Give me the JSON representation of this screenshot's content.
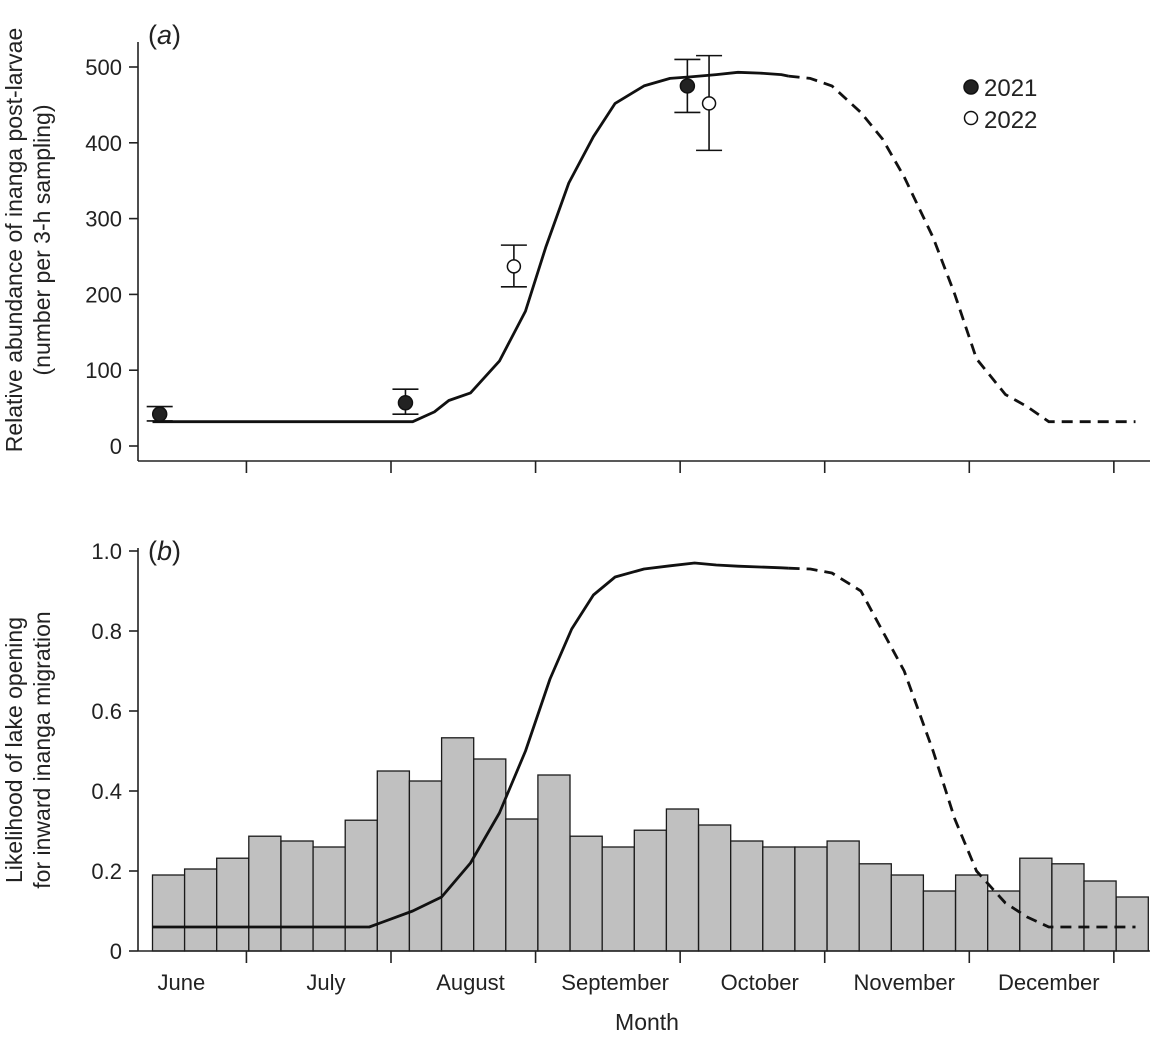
{
  "chart_data": [
    {
      "panel": "a",
      "panel_label": "a",
      "type": "line",
      "xlabel": "",
      "ylabel_lines": [
        "Relative abundance of inanga post-larvae",
        "(number per 3-h sampling)"
      ],
      "ylim": [
        0,
        530
      ],
      "yticks": [
        0,
        100,
        200,
        300,
        400,
        500
      ],
      "x_unit": "month (0 = start of June)",
      "xlim": [
        -0.3,
        6.7
      ],
      "curve": {
        "solid": {
          "x": [
            -0.2,
            0.3,
            0.8,
            1.3,
            1.6,
            1.75,
            1.85,
            2.0,
            2.2,
            2.38,
            2.52,
            2.68,
            2.85,
            3.0,
            3.2,
            3.38,
            3.52,
            3.7,
            3.85,
            4.0,
            4.15,
            4.2
          ],
          "y": [
            32,
            32,
            32,
            32,
            32,
            45,
            60,
            70,
            112,
            178,
            262,
            347,
            408,
            452,
            475,
            485,
            487,
            490,
            493,
            492,
            490,
            488
          ]
        },
        "dashed": {
          "x": [
            4.2,
            4.35,
            4.5,
            4.7,
            4.85,
            5.0,
            5.2,
            5.35,
            5.5,
            5.7,
            5.85,
            6.0,
            6.2,
            6.4,
            6.6
          ],
          "y": [
            488,
            485,
            475,
            440,
            405,
            355,
            275,
            200,
            115,
            68,
            52,
            32,
            32,
            32,
            32
          ]
        }
      },
      "series": [
        {
          "name": "2021",
          "marker": "filled",
          "points": [
            {
              "x": -0.15,
              "y": 42,
              "err_low": 33,
              "err_high": 52
            },
            {
              "x": 1.55,
              "y": 57,
              "err_low": 42,
              "err_high": 75
            },
            {
              "x": 3.5,
              "y": 475,
              "err_low": 440,
              "err_high": 510
            }
          ]
        },
        {
          "name": "2022",
          "marker": "open",
          "points": [
            {
              "x": 2.3,
              "y": 237,
              "err_low": 210,
              "err_high": 265
            },
            {
              "x": 3.65,
              "y": 452,
              "err_low": 390,
              "err_high": 515
            }
          ]
        }
      ],
      "legend": [
        {
          "marker": "filled",
          "label": "2021"
        },
        {
          "marker": "open",
          "label": "2022"
        }
      ],
      "legend_placement": "top-right"
    },
    {
      "panel": "b",
      "panel_label": "b",
      "type": "bar",
      "xlabel": "Month",
      "ylabel_lines": [
        "Likelihood of lake opening",
        "for inward inanga migration"
      ],
      "ylim": [
        0,
        1.0
      ],
      "yticks": [
        "0",
        "0.2",
        "0.4",
        "0.6",
        "0.8",
        "1.0"
      ],
      "categories": [
        "June",
        "July",
        "August",
        "September",
        "October",
        "November",
        "December"
      ],
      "xlim": [
        -0.3,
        6.7
      ],
      "bars": {
        "width": 0.2222,
        "start": -0.2,
        "values": [
          0.19,
          0.205,
          0.232,
          0.287,
          0.275,
          0.26,
          0.327,
          0.45,
          0.425,
          0.533,
          0.48,
          0.33,
          0.44,
          0.287,
          0.26,
          0.302,
          0.355,
          0.315,
          0.275,
          0.26,
          0.26,
          0.275,
          0.218,
          0.19,
          0.15,
          0.19,
          0.15,
          0.232,
          0.218,
          0.175,
          0.135
        ]
      },
      "curve": {
        "solid": {
          "x": [
            -0.2,
            0.3,
            0.8,
            1.3,
            1.6,
            1.8,
            2.0,
            2.2,
            2.38,
            2.55,
            2.7,
            2.85,
            3.0,
            3.2,
            3.38,
            3.55,
            3.7,
            3.85,
            4.0,
            4.15,
            4.2
          ],
          "y": [
            0.06,
            0.06,
            0.06,
            0.06,
            0.1,
            0.135,
            0.22,
            0.345,
            0.5,
            0.68,
            0.805,
            0.89,
            0.935,
            0.955,
            0.963,
            0.97,
            0.965,
            0.962,
            0.96,
            0.958,
            0.957
          ]
        },
        "dashed": {
          "x": [
            4.2,
            4.35,
            4.5,
            4.7,
            4.85,
            5.0,
            5.2,
            5.35,
            5.5,
            5.7,
            5.85,
            6.0,
            6.2,
            6.4,
            6.6
          ],
          "y": [
            0.957,
            0.955,
            0.945,
            0.9,
            0.8,
            0.7,
            0.5,
            0.33,
            0.2,
            0.12,
            0.085,
            0.06,
            0.06,
            0.06,
            0.06
          ]
        }
      }
    }
  ]
}
